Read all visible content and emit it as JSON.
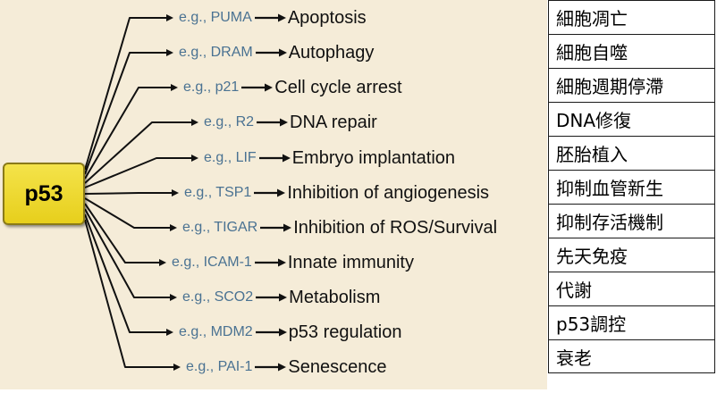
{
  "hub": {
    "label": "p53"
  },
  "rows": [
    {
      "gene": "e.g., PUMA",
      "outcome": "Apoptosis",
      "translation": "細胞凋亡"
    },
    {
      "gene": "e.g., DRAM",
      "outcome": "Autophagy",
      "translation": "細胞自噬"
    },
    {
      "gene": "e.g., p21",
      "outcome": "Cell cycle arrest",
      "translation": "細胞週期停滯"
    },
    {
      "gene": "e.g., R2",
      "outcome": "DNA repair",
      "translation": "DNA修復"
    },
    {
      "gene": "e.g., LIF",
      "outcome": "Embryo implantation",
      "translation": "胚胎植入"
    },
    {
      "gene": "e.g., TSP1",
      "outcome": "Inhibition of angiogenesis",
      "translation": "抑制血管新生"
    },
    {
      "gene": "e.g., TIGAR",
      "outcome": "Inhibition of ROS/Survival",
      "translation": "抑制存活機制"
    },
    {
      "gene": "e.g., ICAM-1",
      "outcome": "Innate immunity",
      "translation": "先天免疫"
    },
    {
      "gene": "e.g., SCO2",
      "outcome": "Metabolism",
      "translation": "代謝"
    },
    {
      "gene": "e.g., MDM2",
      "outcome": "p53 regulation",
      "translation": "p53調控"
    },
    {
      "gene": "e.g., PAI-1",
      "outcome": "Senescence",
      "translation": "衰老"
    }
  ],
  "colors": {
    "background": "#f5ecd8",
    "hub": "#ecd52a",
    "gene_text": "#4a7292",
    "line": "#111111"
  }
}
